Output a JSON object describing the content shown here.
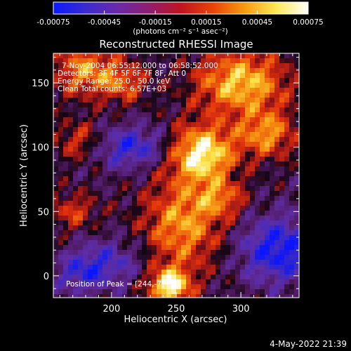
{
  "colorbar": {
    "tick_labels": [
      "-0.00075",
      "-0.00045",
      "-0.00015",
      "0.00015",
      "0.00045",
      "0.00075"
    ],
    "units_text": "(photons cm⁻² s⁻¹ asec⁻²)",
    "range": [
      -0.00075,
      0.00075
    ],
    "colors": [
      "#0a1aff",
      "#3a2bd0",
      "#6a2aa8",
      "#8e1e6e",
      "#c0141e",
      "#e9420a",
      "#f79a10",
      "#fde858",
      "#ffffff"
    ]
  },
  "plot_title": "Reconstructed RHESSI Image",
  "info_lines": [
    "7-Nov-2004 06:55:12.000 to 06:58:52.000",
    "Detectors: 3F 4F 5F 6F 7F 8F, Att 0",
    "Energy Range: 25.0 - 50.0 keV",
    "Clean      Total counts: 6.57E+03"
  ],
  "peak_label": "Position of Peak = [244,-7]",
  "footer_date": "4-May-2022 21:39",
  "chart_data": {
    "type": "heatmap",
    "title": "Reconstructed RHESSI Image",
    "xlabel": "Heliocentric X (arcsec)",
    "ylabel": "Heliocentric Y (arcsec)",
    "xlim": [
      155,
      345
    ],
    "ylim": [
      -17,
      173
    ],
    "x_tick_values": [
      200,
      250,
      300
    ],
    "x_tick_labels": [
      "200",
      "250",
      "300"
    ],
    "y_tick_values": [
      0,
      50,
      100,
      150
    ],
    "y_tick_labels": [
      "0",
      "50",
      "100",
      "150"
    ],
    "colorbar_range": [
      -0.00075,
      0.00075
    ],
    "colorbar_units": "(photons cm⁻² s⁻¹ asec⁻²)",
    "peak_position": [
      244,
      -7
    ],
    "grid": false
  }
}
